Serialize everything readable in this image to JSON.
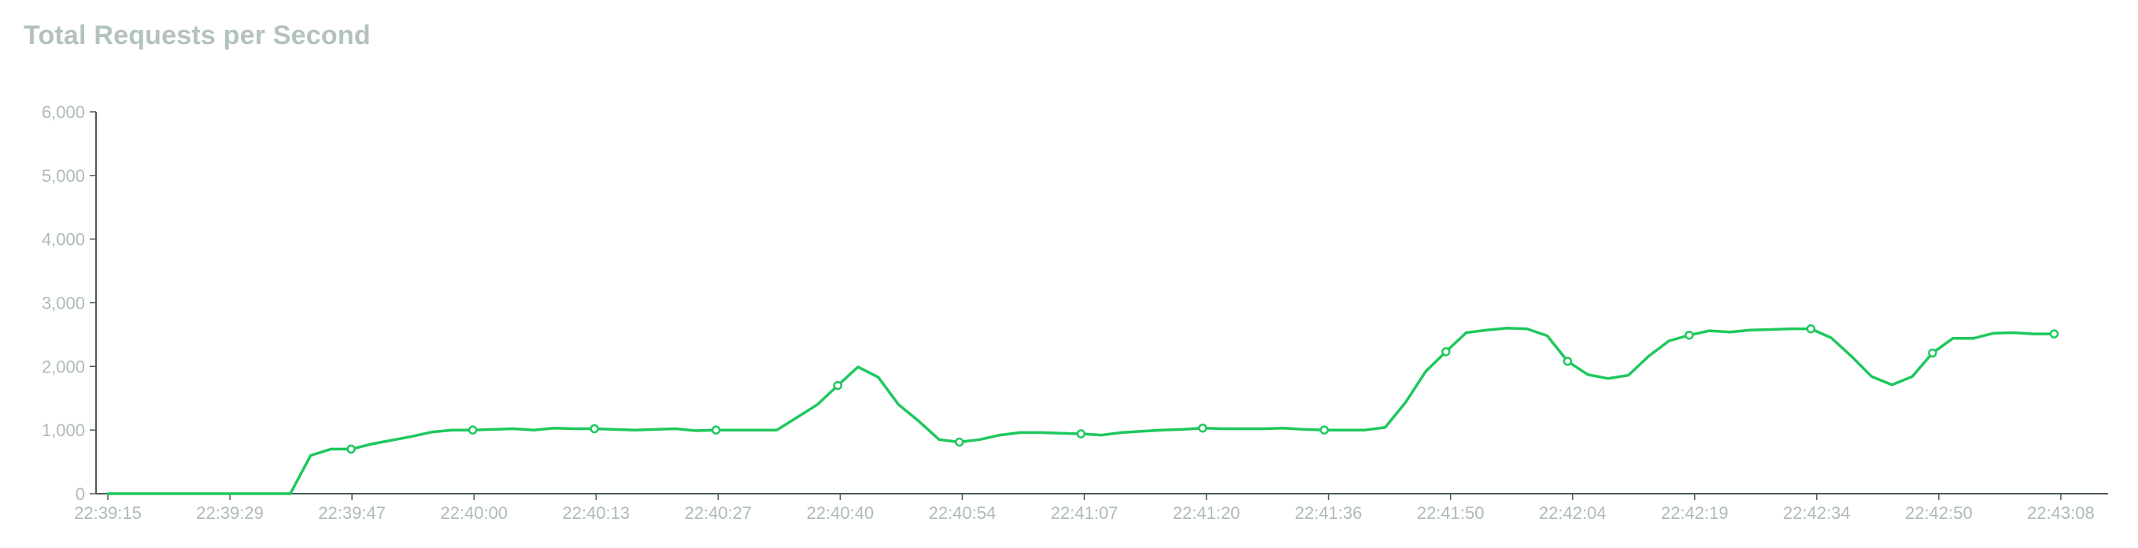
{
  "chart_data": {
    "type": "line",
    "title": "Total Requests per Second",
    "xlabel": "",
    "ylabel": "",
    "ylim": [
      0,
      6000
    ],
    "y_ticks": [
      0,
      1000,
      2000,
      3000,
      4000,
      5000,
      6000
    ],
    "y_tick_labels": [
      "0",
      "1,000",
      "2,000",
      "3,000",
      "4,000",
      "5,000",
      "6,000"
    ],
    "x_tick_labels": [
      "22:39:15",
      "22:39:29",
      "22:39:47",
      "22:40:00",
      "22:40:13",
      "22:40:27",
      "22:40:40",
      "22:40:54",
      "22:41:07",
      "22:41:20",
      "22:41:36",
      "22:41:50",
      "22:42:04",
      "22:42:19",
      "22:42:34",
      "22:42:50",
      "22:43:08"
    ],
    "grid": false,
    "legend": "none",
    "color": "#1ec85d",
    "series": [
      {
        "values": [
          0,
          0,
          0,
          0,
          0,
          0,
          0,
          0,
          0,
          0,
          600,
          700,
          700,
          780,
          840,
          900,
          970,
          1000,
          1000,
          1010,
          1020,
          1000,
          1030,
          1020,
          1020,
          1010,
          1000,
          1010,
          1020,
          990,
          1000,
          1000,
          1000,
          1000,
          1200,
          1400,
          1700,
          1990,
          1830,
          1400,
          1140,
          850,
          810,
          850,
          920,
          960,
          960,
          950,
          940,
          920,
          960,
          980,
          1000,
          1010,
          1030,
          1020,
          1020,
          1020,
          1030,
          1010,
          1000,
          1000,
          1000,
          1040,
          1430,
          1920,
          2230,
          2530,
          2570,
          2600,
          2590,
          2480,
          2080,
          1870,
          1810,
          1860,
          2160,
          2400,
          2490,
          2560,
          2540,
          2570,
          2580,
          2590,
          2590,
          2450,
          2160,
          1840,
          1710,
          1840,
          2210,
          2440,
          2440,
          2520,
          2530,
          2510,
          2510
        ],
        "marked_points": [
          12,
          18,
          24,
          30,
          36,
          42,
          48,
          54,
          60,
          66,
          72,
          78,
          84,
          90,
          96
        ]
      }
    ]
  }
}
